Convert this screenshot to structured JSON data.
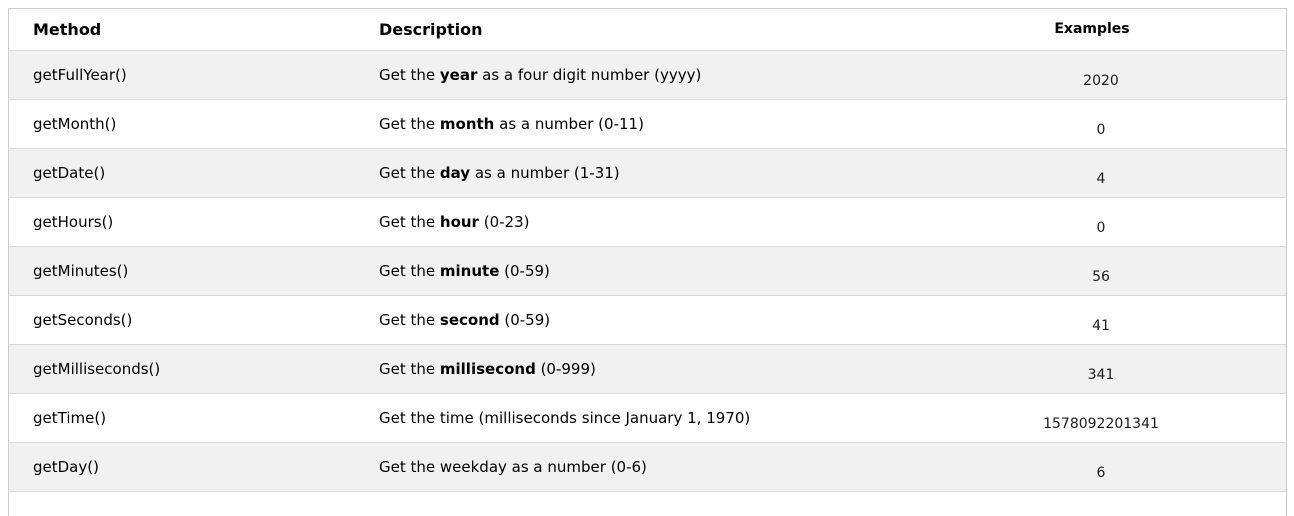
{
  "table": {
    "headers": {
      "method": "Method",
      "description": "Description",
      "examples": "Examples"
    },
    "rows": [
      {
        "method": "getFullYear()",
        "desc_pre": "Get the ",
        "desc_bold": "year",
        "desc_post": " as a four digit number (yyyy)",
        "example": "2020"
      },
      {
        "method": "getMonth()",
        "desc_pre": "Get the ",
        "desc_bold": "month",
        "desc_post": " as a number (0-11)",
        "example": "0"
      },
      {
        "method": "getDate()",
        "desc_pre": "Get the ",
        "desc_bold": "day",
        "desc_post": " as a number (1-31)",
        "example": "4"
      },
      {
        "method": "getHours()",
        "desc_pre": "Get the ",
        "desc_bold": "hour",
        "desc_post": " (0-23)",
        "example": "0"
      },
      {
        "method": "getMinutes()",
        "desc_pre": "Get the ",
        "desc_bold": "minute",
        "desc_post": " (0-59)",
        "example": "56"
      },
      {
        "method": "getSeconds()",
        "desc_pre": "Get the ",
        "desc_bold": "second",
        "desc_post": " (0-59)",
        "example": "41"
      },
      {
        "method": "getMilliseconds()",
        "desc_pre": "Get the ",
        "desc_bold": "millisecond",
        "desc_post": " (0-999)",
        "example": "341"
      },
      {
        "method": "getTime()",
        "desc_pre": "Get the time (milliseconds since January 1, 1970)",
        "desc_bold": "",
        "desc_post": "",
        "example": "1578092201341"
      },
      {
        "method": "getDay()",
        "desc_pre": "Get the weekday as a number (0-6)",
        "desc_bold": "",
        "desc_post": "",
        "example": "6"
      }
    ],
    "colors": {
      "stripe": "#f1f1f1",
      "row_border": "#d9d9d9",
      "outer_border": "#cccccc"
    }
  }
}
